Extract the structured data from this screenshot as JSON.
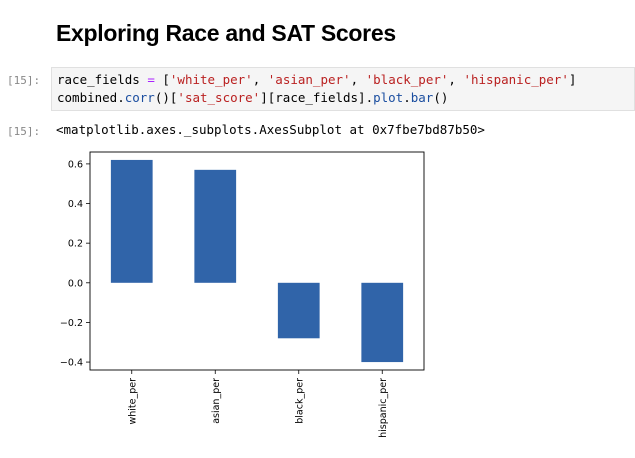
{
  "notebook": {
    "heading": "Exploring Race and SAT Scores",
    "input_prompt": "[15]:",
    "output_prompt": "[15]:",
    "code": {
      "line1": {
        "a": "race_fields ",
        "eq": "=",
        "b": " [",
        "s1": "'white_per'",
        "c1": ", ",
        "s2": "'asian_per'",
        "c2": ", ",
        "s3": "'black_per'",
        "c3": ", ",
        "s4": "'hispanic_per'",
        "end": "]"
      },
      "line2": {
        "a": "combined.",
        "f1": "corr",
        "b": "()[",
        "s1": "'sat_score'",
        "c": "][race_fields].",
        "f2": "plot",
        "d": ".",
        "f3": "bar",
        "end": "()"
      }
    },
    "output_text": "<matplotlib.axes._subplots.AxesSubplot at 0x7fbe7bd87b50>"
  },
  "chart_data": {
    "type": "bar",
    "categories": [
      "white_per",
      "asian_per",
      "black_per",
      "hispanic_per"
    ],
    "values": [
      0.62,
      0.57,
      -0.28,
      -0.4
    ],
    "ylim": [
      -0.44,
      0.66
    ],
    "yticks": [
      0.6,
      0.4,
      0.2,
      0.0,
      -0.2,
      -0.4
    ],
    "ytick_labels": [
      "0.6",
      "0.4",
      "0.2",
      "0.0",
      "−0.2",
      "−0.4"
    ],
    "bar_color": "#3064a9",
    "grid": false,
    "title": "",
    "xlabel": "",
    "ylabel": ""
  }
}
